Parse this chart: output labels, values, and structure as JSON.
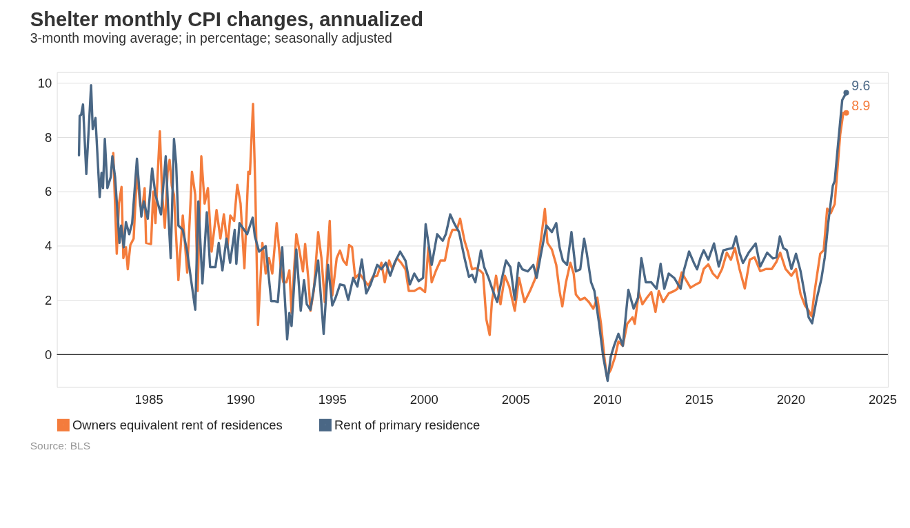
{
  "chart_data": {
    "type": "line",
    "title": "Shelter monthly CPI changes, annualized",
    "subtitle": "3-month moving average; in percentage; seasonally adjusted",
    "annotations": [
      "Source: BLS",
      {
        "text": "8.9",
        "x": 2023.03,
        "y": 8.9
      },
      {
        "text": "9.6",
        "x": 2023.03,
        "y": 9.64
      }
    ],
    "xlim": [
      1980,
      2025.3
    ],
    "xticks": [
      1985,
      1990,
      1995,
      2000,
      2005,
      2010,
      2015,
      2020,
      2025
    ],
    "ylim": [
      -1.2,
      10.4
    ],
    "yticks": [
      0,
      2,
      4,
      6,
      8,
      10
    ],
    "grid": "y",
    "legend": "bottom",
    "ref_lines": [
      {
        "axis": "y",
        "value": 0,
        "color": "#333333"
      }
    ],
    "series": [
      {
        "name": "Owners equivalent rent of residences",
        "color": "#f47c3c",
        "x": [
          1983.07,
          1983.26,
          1983.38,
          1983.52,
          1983.62,
          1983.76,
          1983.86,
          1984.0,
          1984.18,
          1984.36,
          1984.54,
          1984.66,
          1984.78,
          1984.86,
          1985.13,
          1985.25,
          1985.37,
          1985.49,
          1985.61,
          1985.73,
          1985.88,
          1986.03,
          1986.14,
          1986.26,
          1986.38,
          1986.62,
          1986.86,
          1987.1,
          1987.36,
          1987.54,
          1987.67,
          1987.87,
          1988.05,
          1988.23,
          1988.43,
          1988.7,
          1988.91,
          1989.1,
          1989.3,
          1989.45,
          1989.66,
          1989.83,
          1990.01,
          1990.22,
          1990.43,
          1990.52,
          1990.69,
          1990.81,
          1990.96,
          1991.2,
          1991.38,
          1991.56,
          1991.74,
          1991.98,
          1992.21,
          1992.34,
          1992.51,
          1992.67,
          1992.79,
          1992.93,
          1993.05,
          1993.23,
          1993.41,
          1993.53,
          1993.71,
          1993.82,
          1994.0,
          1994.24,
          1994.42,
          1994.6,
          1994.87,
          1995.01,
          1995.25,
          1995.43,
          1995.61,
          1995.79,
          1995.93,
          1996.09,
          1996.26,
          1996.5,
          1996.74,
          1996.98,
          1997.22,
          1997.46,
          1997.69,
          1997.87,
          1998.11,
          1998.29,
          1998.53,
          1998.76,
          1999.0,
          1999.18,
          1999.48,
          1999.78,
          2000.07,
          2000.25,
          2000.43,
          2000.67,
          2000.91,
          2001.15,
          2001.38,
          2001.56,
          2001.8,
          2001.98,
          2002.22,
          2002.4,
          2002.63,
          2002.81,
          2003.05,
          2003.23,
          2003.41,
          2003.59,
          2003.71,
          2003.94,
          2004.18,
          2004.42,
          2004.66,
          2004.96,
          2005.19,
          2005.49,
          2005.79,
          2006.09,
          2006.33,
          2006.6,
          2006.74,
          2006.98,
          2007.22,
          2007.4,
          2007.55,
          2007.75,
          2007.99,
          2008.17,
          2008.29,
          2008.53,
          2008.77,
          2009.0,
          2009.24,
          2009.46,
          2009.66,
          2009.84,
          2009.98,
          2010.19,
          2010.43,
          2010.61,
          2010.85,
          2011.09,
          2011.38,
          2011.5,
          2011.72,
          2011.92,
          2012.16,
          2012.4,
          2012.63,
          2012.81,
          2013.05,
          2013.35,
          2013.65,
          2013.83,
          2014.06,
          2014.3,
          2014.54,
          2014.83,
          2015.06,
          2015.26,
          2015.51,
          2015.76,
          2016.01,
          2016.26,
          2016.52,
          2016.74,
          2016.96,
          2017.21,
          2017.5,
          2017.77,
          2018.03,
          2018.34,
          2018.65,
          2018.97,
          2019.22,
          2019.43,
          2019.72,
          2020.04,
          2020.29,
          2020.54,
          2020.79,
          2020.98,
          2021.14,
          2021.3,
          2021.61,
          2021.8,
          2021.99,
          2022.18,
          2022.4,
          2022.55,
          2022.7,
          2022.87,
          2023.03
        ],
        "values": [
          7.42,
          3.71,
          5.56,
          6.17,
          3.55,
          3.95,
          3.14,
          4.03,
          4.27,
          6.69,
          5.48,
          5.4,
          6.13,
          4.11,
          4.07,
          6.0,
          4.84,
          6.61,
          8.22,
          5.96,
          4.67,
          6.69,
          7.17,
          6.21,
          5.88,
          2.74,
          5.12,
          3.02,
          6.73,
          5.88,
          2.34,
          7.3,
          5.56,
          6.13,
          3.79,
          5.32,
          4.27,
          5.16,
          3.95,
          5.12,
          4.92,
          6.25,
          5.56,
          3.18,
          6.73,
          6.65,
          9.23,
          6.21,
          1.09,
          4.11,
          2.98,
          3.55,
          2.98,
          4.84,
          3.14,
          2.66,
          2.66,
          3.1,
          1.53,
          3.14,
          4.43,
          3.79,
          3.06,
          4.07,
          2.74,
          1.61,
          2.34,
          4.51,
          3.55,
          1.93,
          4.92,
          2.17,
          3.55,
          3.83,
          3.46,
          3.3,
          4.03,
          3.95,
          2.82,
          2.98,
          2.74,
          2.54,
          2.86,
          2.9,
          3.38,
          2.66,
          3.46,
          3.14,
          3.55,
          3.38,
          3.14,
          2.34,
          2.34,
          2.46,
          2.3,
          3.95,
          2.66,
          3.1,
          3.46,
          3.46,
          4.27,
          4.59,
          4.59,
          5.0,
          4.19,
          3.79,
          3.14,
          3.18,
          3.1,
          2.98,
          1.29,
          0.72,
          1.93,
          2.9,
          1.85,
          2.9,
          2.5,
          1.61,
          2.82,
          1.93,
          2.34,
          2.82,
          3.95,
          5.36,
          4.11,
          3.87,
          3.3,
          2.34,
          1.77,
          2.66,
          3.38,
          2.98,
          2.21,
          2.01,
          2.09,
          1.93,
          1.69,
          2.09,
          1.13,
          -0.08,
          -0.81,
          -0.57,
          -0.08,
          0.48,
          0.32,
          1.13,
          1.37,
          1.13,
          2.3,
          1.85,
          2.09,
          2.3,
          1.57,
          2.34,
          1.93,
          2.25,
          2.34,
          2.42,
          3.02,
          2.74,
          2.46,
          2.58,
          2.66,
          3.15,
          3.32,
          2.98,
          2.81,
          3.15,
          3.75,
          3.49,
          3.92,
          3.15,
          2.43,
          3.49,
          3.58,
          3.07,
          3.15,
          3.15,
          3.41,
          3.75,
          3.15,
          2.9,
          3.15,
          2.22,
          1.79,
          1.62,
          1.41,
          2.3,
          3.71,
          3.84,
          5.37,
          5.2,
          5.54,
          6.82,
          8.1,
          8.9,
          8.9
        ]
      },
      {
        "name": "Rent of primary residence",
        "color": "#4a6785",
        "x": [
          1981.2,
          1981.24,
          1981.32,
          1981.42,
          1981.6,
          1981.86,
          1981.95,
          1982.1,
          1982.33,
          1982.43,
          1982.51,
          1982.61,
          1982.75,
          1982.93,
          1983.02,
          1983.17,
          1983.41,
          1983.5,
          1983.64,
          1983.76,
          1983.94,
          1984.1,
          1984.36,
          1984.6,
          1984.74,
          1984.95,
          1985.19,
          1985.37,
          1985.67,
          1985.93,
          1986.08,
          1986.2,
          1986.38,
          1986.5,
          1986.62,
          1986.86,
          1987.1,
          1987.33,
          1987.54,
          1987.71,
          1987.93,
          1988.17,
          1988.35,
          1988.64,
          1988.82,
          1989.02,
          1989.24,
          1989.44,
          1989.69,
          1989.78,
          1989.95,
          1990.37,
          1990.67,
          1990.79,
          1991.02,
          1991.38,
          1991.68,
          1991.86,
          1992.04,
          1992.28,
          1992.4,
          1992.55,
          1992.67,
          1992.79,
          1993.05,
          1993.29,
          1993.47,
          1993.62,
          1993.82,
          1994.06,
          1994.24,
          1994.54,
          1994.78,
          1995.01,
          1995.19,
          1995.43,
          1995.67,
          1995.88,
          1996.15,
          1996.38,
          1996.62,
          1996.86,
          1997.1,
          1997.46,
          1997.69,
          1997.93,
          1998.17,
          1998.41,
          1998.71,
          1999.0,
          1999.24,
          1999.48,
          1999.72,
          1999.96,
          2000.1,
          2000.25,
          2000.43,
          2000.73,
          2001.03,
          2001.2,
          2001.44,
          2001.65,
          2001.92,
          2002.22,
          2002.46,
          2002.63,
          2002.81,
          2003.11,
          2003.29,
          2003.53,
          2003.77,
          2004.0,
          2004.24,
          2004.48,
          2004.72,
          2004.96,
          2005.17,
          2005.37,
          2005.67,
          2005.97,
          2006.15,
          2006.39,
          2006.68,
          2006.98,
          2007.22,
          2007.4,
          2007.58,
          2007.81,
          2008.05,
          2008.29,
          2008.53,
          2008.74,
          2008.89,
          2009.12,
          2009.3,
          2009.54,
          2009.78,
          2010.02,
          2010.19,
          2010.37,
          2010.61,
          2010.85,
          2011.15,
          2011.44,
          2011.68,
          2011.86,
          2012.1,
          2012.4,
          2012.69,
          2012.91,
          2013.11,
          2013.35,
          2013.65,
          2014.0,
          2014.18,
          2014.46,
          2014.72,
          2014.9,
          2015.08,
          2015.26,
          2015.51,
          2015.82,
          2016.08,
          2016.33,
          2016.58,
          2016.83,
          2017.02,
          2017.21,
          2017.4,
          2017.71,
          2018.09,
          2018.34,
          2018.72,
          2019.03,
          2019.22,
          2019.41,
          2019.6,
          2019.79,
          2020.04,
          2020.29,
          2020.54,
          2020.79,
          2020.98,
          2021.17,
          2021.42,
          2021.67,
          2021.86,
          2022.05,
          2022.3,
          2022.4,
          2022.55,
          2022.68,
          2022.81,
          2023.03
        ],
        "values": [
          7.34,
          8.79,
          8.83,
          9.21,
          6.65,
          9.92,
          8.3,
          8.71,
          5.8,
          6.69,
          6.13,
          7.94,
          6.13,
          6.53,
          7.3,
          6.53,
          4.11,
          4.75,
          3.95,
          4.88,
          4.43,
          4.84,
          7.21,
          5.08,
          5.64,
          5.0,
          6.85,
          5.88,
          5.16,
          7.3,
          5.08,
          3.55,
          7.94,
          7.01,
          4.75,
          4.59,
          3.79,
          2.66,
          1.65,
          5.64,
          2.62,
          5.24,
          3.22,
          3.22,
          4.11,
          3.1,
          4.27,
          3.38,
          4.59,
          3.34,
          4.84,
          4.43,
          5.04,
          4.35,
          3.79,
          3.99,
          1.97,
          1.97,
          1.93,
          3.95,
          2.34,
          0.56,
          1.53,
          1.05,
          3.87,
          1.61,
          2.74,
          1.85,
          1.65,
          2.66,
          3.46,
          0.76,
          3.3,
          1.81,
          2.09,
          2.58,
          2.54,
          2.01,
          2.82,
          2.5,
          3.5,
          2.25,
          2.58,
          3.3,
          3.14,
          3.38,
          2.9,
          3.38,
          3.79,
          3.46,
          2.58,
          2.98,
          2.7,
          2.82,
          4.8,
          4.11,
          3.3,
          4.43,
          4.19,
          4.43,
          5.16,
          4.84,
          4.51,
          3.55,
          2.86,
          2.94,
          2.66,
          3.83,
          3.22,
          2.82,
          2.34,
          1.93,
          2.74,
          3.46,
          3.22,
          2.01,
          3.38,
          3.14,
          3.06,
          3.3,
          2.82,
          3.71,
          4.75,
          4.51,
          4.84,
          3.95,
          3.46,
          3.3,
          4.51,
          3.06,
          3.14,
          4.27,
          3.71,
          2.66,
          2.34,
          1.21,
          -0.08,
          -0.97,
          -0.08,
          0.32,
          0.76,
          0.32,
          2.38,
          1.69,
          2.09,
          3.55,
          2.66,
          2.66,
          2.42,
          3.34,
          2.42,
          2.98,
          2.82,
          2.42,
          3.1,
          3.79,
          3.38,
          3.14,
          3.55,
          3.84,
          3.49,
          4.09,
          3.24,
          3.84,
          3.88,
          3.92,
          4.35,
          3.75,
          3.37,
          3.75,
          4.09,
          3.24,
          3.75,
          3.54,
          3.58,
          4.35,
          3.92,
          3.84,
          3.15,
          3.71,
          3.07,
          2.13,
          1.37,
          1.15,
          2.05,
          2.77,
          3.58,
          4.86,
          6.22,
          6.39,
          7.5,
          8.44,
          9.37,
          9.64
        ]
      }
    ]
  }
}
